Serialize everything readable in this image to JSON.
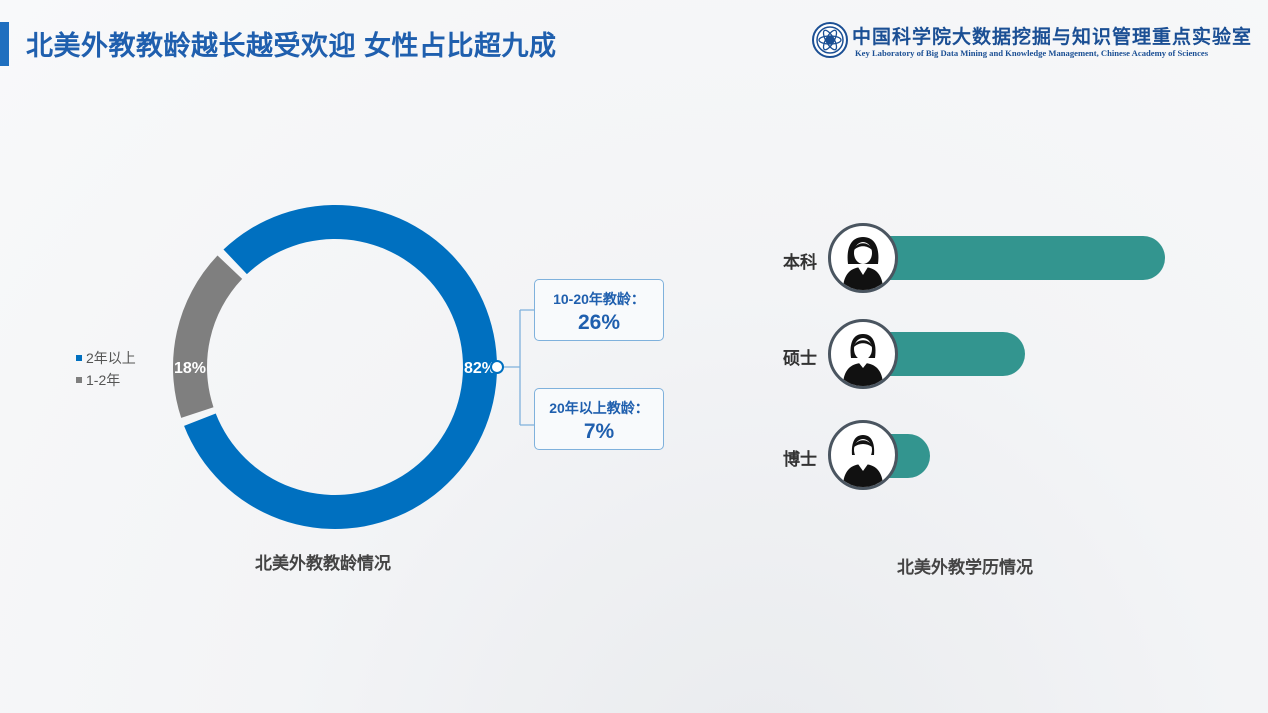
{
  "header": {
    "title": "北美外教教龄越长越受欢迎 女性占比超九成",
    "org_cn": "中国科学院大数据挖掘与知识管理重点实验室",
    "org_en": "Key Laboratory of Big Data Mining and Knowledge Management, Chinese Academy of Sciences"
  },
  "colors": {
    "blue": "#0070c0",
    "gray": "#7f7f7f",
    "teal": "#33958f",
    "title": "#1f5fae"
  },
  "chart_data": [
    {
      "type": "pie",
      "title": "北美外教教龄情况",
      "categories": [
        "2年以上",
        "1-2年"
      ],
      "values": [
        82,
        18
      ],
      "data_labels": [
        "82%",
        "18%"
      ],
      "legend": {
        "position": "left",
        "entries": [
          "2年以上",
          "1-2年"
        ]
      },
      "breakdown": [
        {
          "label": "10-20年教龄：",
          "value": "26%"
        },
        {
          "label": "20年以上教龄：",
          "value": "7%"
        }
      ]
    },
    {
      "type": "bar",
      "orientation": "horizontal",
      "title": "北美外教学历情况",
      "categories": [
        "本科",
        "硕士",
        "博士"
      ],
      "values": [
        0.73,
        0.36,
        0.11
      ],
      "icons": [
        "woman-avatar-icon",
        "woman-avatar-icon",
        "woman-avatar-icon"
      ]
    }
  ]
}
